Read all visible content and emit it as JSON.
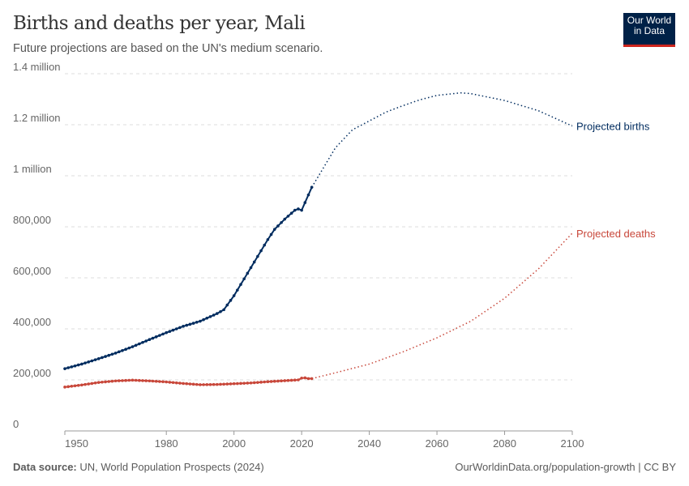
{
  "header": {
    "title": "Births and deaths per year, Mali",
    "subtitle": "Future projections are based on the UN's medium scenario.",
    "logo": "Our World in Data"
  },
  "footer": {
    "source_label": "Data source:",
    "source": "UN, World Population Prospects (2024)",
    "link": "OurWorldinData.org/population-growth | CC BY"
  },
  "chart_data": {
    "type": "line",
    "title": "Births and deaths per year, Mali",
    "xlim": [
      1950,
      2100
    ],
    "ylim": [
      0,
      1400000
    ],
    "x_ticks": [
      1950,
      1980,
      2000,
      2020,
      2040,
      2060,
      2080,
      2100
    ],
    "x_tick_labels": [
      "1950",
      "1980",
      "2000",
      "2020",
      "2040",
      "2060",
      "2080",
      "2100"
    ],
    "y_ticks": [
      0,
      200000,
      400000,
      600000,
      800000,
      1000000,
      1200000,
      1400000
    ],
    "y_tick_labels": [
      "0",
      "200,000",
      "400,000",
      "600,000",
      "800,000",
      "1 million",
      "1.2 million",
      "1.4 million"
    ],
    "grid": "horizontal dashed",
    "series": [
      {
        "name": "Births",
        "color": "#002c5f",
        "historical": {
          "x": [
            1950,
            1955,
            1960,
            1965,
            1970,
            1975,
            1980,
            1985,
            1990,
            1995,
            1997,
            2000,
            2005,
            2010,
            2012,
            2015,
            2018,
            2019,
            2020,
            2021,
            2022,
            2023
          ],
          "y": [
            244000,
            262000,
            283000,
            305000,
            330000,
            358000,
            385000,
            410000,
            430000,
            460000,
            475000,
            530000,
            640000,
            750000,
            790000,
            830000,
            865000,
            870000,
            865000,
            895000,
            925000,
            955000
          ]
        },
        "projected": {
          "name": "Projected births",
          "x": [
            2023,
            2030,
            2035,
            2040,
            2045,
            2050,
            2055,
            2060,
            2067,
            2070,
            2080,
            2090,
            2100
          ],
          "y": [
            955000,
            1110000,
            1180000,
            1215000,
            1250000,
            1275000,
            1298000,
            1315000,
            1325000,
            1322000,
            1295000,
            1255000,
            1195000
          ]
        }
      },
      {
        "name": "Deaths",
        "color": "#c8473a",
        "historical": {
          "x": [
            1950,
            1955,
            1960,
            1965,
            1970,
            1975,
            1980,
            1985,
            1990,
            1995,
            2000,
            2005,
            2010,
            2015,
            2019,
            2020,
            2021,
            2022,
            2023
          ],
          "y": [
            172000,
            180000,
            190000,
            196000,
            199000,
            196000,
            192000,
            186000,
            181000,
            182000,
            185000,
            188000,
            193000,
            197000,
            200000,
            207000,
            208000,
            205000,
            205000
          ]
        },
        "projected": {
          "name": "Projected deaths",
          "x": [
            2023,
            2030,
            2040,
            2050,
            2060,
            2070,
            2080,
            2090,
            2100
          ],
          "y": [
            205000,
            228000,
            262000,
            310000,
            365000,
            430000,
            520000,
            635000,
            775000
          ]
        }
      }
    ]
  }
}
